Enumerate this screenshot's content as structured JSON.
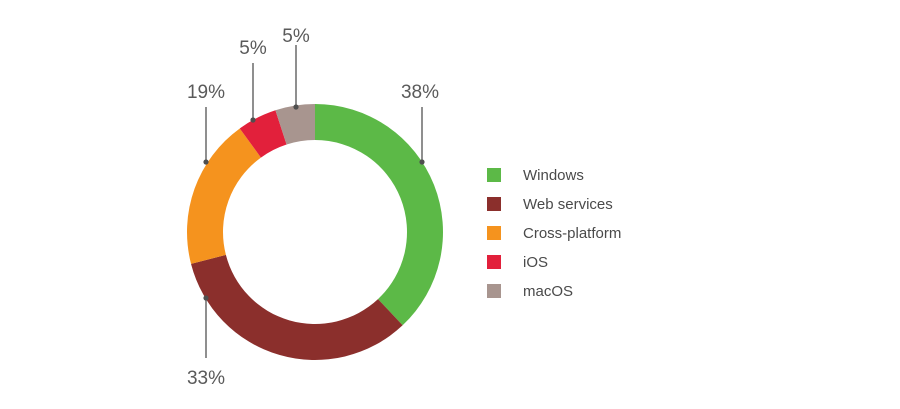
{
  "chart_data": {
    "type": "pie",
    "donut": true,
    "title": "",
    "legend_position": "right",
    "slices": [
      {
        "label": "Windows",
        "value": 38,
        "value_label": "38%",
        "color": "#5cb947"
      },
      {
        "label": "Web services",
        "value": 33,
        "value_label": "33%",
        "color": "#8b2f2c"
      },
      {
        "label": "Cross-platform",
        "value": 19,
        "value_label": "19%",
        "color": "#f5931e"
      },
      {
        "label": "iOS",
        "value": 5,
        "value_label": "5%",
        "color": "#e2203b"
      },
      {
        "label": "macOS",
        "value": 5,
        "value_label": "5%",
        "color": "#a8958f"
      }
    ]
  }
}
